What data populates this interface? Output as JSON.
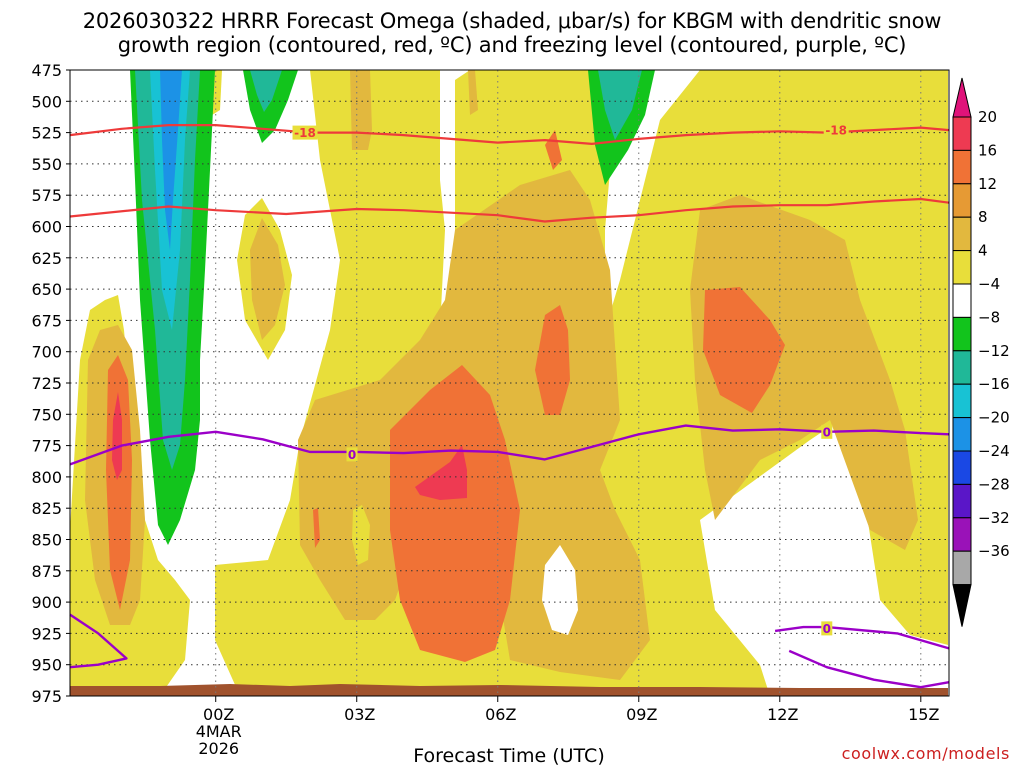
{
  "chart_data": {
    "type": "heatmap",
    "title_line1": "2026030322 HRRR Forecast Omega (shaded, μbar/s) for KBGM with dendritic snow",
    "title_line2": "growth region (contoured, red, ºC) and freezing level (contoured, purple, ºC)",
    "xlabel": "Forecast Time (UTC)",
    "credit": "coolwx.com/models",
    "y_ticks": [
      "475",
      "500",
      "525",
      "550",
      "575",
      "600",
      "625",
      "650",
      "675",
      "700",
      "725",
      "750",
      "775",
      "800",
      "825",
      "850",
      "875",
      "900",
      "925",
      "950",
      "975"
    ],
    "y_range_mb": [
      475,
      975
    ],
    "x_range_hours": [
      -3.1,
      15.6
    ],
    "x_ticks": [
      {
        "hour": 0,
        "label": "00Z",
        "sub1": "4MAR",
        "sub2": "2026"
      },
      {
        "hour": 3,
        "label": "03Z"
      },
      {
        "hour": 6,
        "label": "06Z"
      },
      {
        "hour": 9,
        "label": "09Z"
      },
      {
        "hour": 12,
        "label": "12Z"
      },
      {
        "hour": 15,
        "label": "15Z"
      }
    ],
    "colorbar": {
      "labels": [
        "20",
        "16",
        "12",
        "8",
        "4",
        "−4",
        "−8",
        "−12",
        "−16",
        "−20",
        "−24",
        "−28",
        "−32",
        "−36"
      ],
      "colors": [
        "#ee3a52",
        "#f07236",
        "#e69a34",
        "#e2b83e",
        "#e8de3a",
        "#ffffff",
        "#12c41c",
        "#20b898",
        "#18c2d4",
        "#1c92e6",
        "#1a48e4",
        "#5a16c8",
        "#9a12b8",
        "#a8a8a8"
      ],
      "top_arrow": "#e0137a",
      "bottom_arrow": "#000000"
    },
    "contours": {
      "dgz_label": "-18",
      "freezing_label": "0",
      "dgz_color": "#ee3a3a",
      "freezing_color": "#9b00c8",
      "dgz_top": [
        [
          -3.1,
          527
        ],
        [
          -2.0,
          522
        ],
        [
          -1.0,
          519
        ],
        [
          0.0,
          519
        ],
        [
          1.0,
          522
        ],
        [
          2.0,
          525
        ],
        [
          3.0,
          525
        ],
        [
          4.0,
          527
        ],
        [
          5.0,
          530
        ],
        [
          6.0,
          533
        ],
        [
          7.0,
          531
        ],
        [
          8.0,
          534
        ],
        [
          9.0,
          530
        ],
        [
          10.0,
          527
        ],
        [
          11.0,
          525
        ],
        [
          12.0,
          524
        ],
        [
          13.0,
          525
        ],
        [
          14.0,
          523
        ],
        [
          15.0,
          521
        ],
        [
          15.6,
          523
        ]
      ],
      "dgz_bottom": [
        [
          -3.1,
          592
        ],
        [
          -1.0,
          584
        ],
        [
          0.0,
          587
        ],
        [
          1.5,
          590
        ],
        [
          3.0,
          586
        ],
        [
          4.0,
          587
        ],
        [
          5.0,
          589
        ],
        [
          6.0,
          591
        ],
        [
          7.0,
          596
        ],
        [
          8.0,
          593
        ],
        [
          9.0,
          591
        ],
        [
          10.0,
          587
        ],
        [
          11.0,
          584
        ],
        [
          12.0,
          583
        ],
        [
          13.0,
          583
        ],
        [
          14.0,
          580
        ],
        [
          15.0,
          578
        ],
        [
          15.6,
          581
        ]
      ],
      "freezing_upper": [
        [
          -3.1,
          790
        ],
        [
          -2.0,
          775
        ],
        [
          -1.0,
          768
        ],
        [
          0.0,
          764
        ],
        [
          1.0,
          770
        ],
        [
          2.0,
          780
        ],
        [
          3.0,
          780
        ],
        [
          4.0,
          781
        ],
        [
          5.0,
          779
        ],
        [
          6.0,
          780
        ],
        [
          7.0,
          786
        ],
        [
          8.0,
          776
        ],
        [
          9.0,
          766
        ],
        [
          10.0,
          759
        ],
        [
          11.0,
          763
        ],
        [
          12.0,
          762
        ],
        [
          13.0,
          764
        ],
        [
          14.0,
          763
        ],
        [
          15.0,
          765
        ],
        [
          15.6,
          766
        ]
      ],
      "freezing_lower1": [
        [
          -3.1,
          910
        ],
        [
          -2.5,
          925
        ],
        [
          -1.9,
          945
        ],
        [
          -2.5,
          950
        ],
        [
          -3.1,
          952
        ]
      ],
      "freezing_lower2": [
        [
          11.9,
          923
        ],
        [
          12.5,
          920
        ],
        [
          13.0,
          920
        ],
        [
          14.5,
          925
        ],
        [
          15.6,
          937
        ]
      ],
      "freezing_lower3": [
        [
          12.2,
          939
        ],
        [
          13.0,
          952
        ],
        [
          14.0,
          962
        ],
        [
          15.0,
          968
        ],
        [
          15.6,
          964
        ]
      ]
    }
  }
}
